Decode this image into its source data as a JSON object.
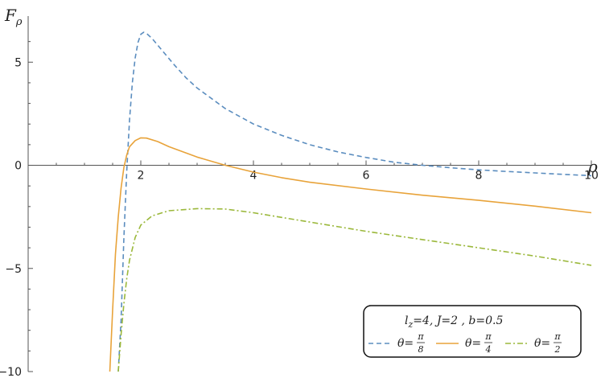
{
  "chart_data": {
    "type": "line",
    "xlabel": "ρ",
    "ylabel_main": "F",
    "ylabel_sub": "ρ",
    "xlim": [
      0,
      10
    ],
    "ylim": [
      -10,
      7
    ],
    "x_ticks": [
      2,
      4,
      6,
      8,
      10
    ],
    "x_tick_labels": [
      "2",
      "4",
      "6",
      "8",
      "10"
    ],
    "y_ticks": [
      5,
      0,
      -5,
      -10
    ],
    "y_tick_labels": [
      "5",
      "0",
      "−5",
      "−10"
    ],
    "grid": false,
    "legend_placement": "bottom-right",
    "params": {
      "lz": "l",
      "lz_sub": "z",
      "lz_rest": "=4,  J=2 ,  b=0.5"
    },
    "series": [
      {
        "name": "θ = π/8",
        "label_lhs": "θ",
        "label_num": "π",
        "label_den": "8",
        "color": "#5B8DBF",
        "dash": "6,4",
        "points": [
          [
            1.6,
            -10
          ],
          [
            1.65,
            -7.5
          ],
          [
            1.7,
            -3.5
          ],
          [
            1.75,
            -0.3
          ],
          [
            1.8,
            2.2
          ],
          [
            1.85,
            4.0
          ],
          [
            1.9,
            5.2
          ],
          [
            1.95,
            5.95
          ],
          [
            2.0,
            6.35
          ],
          [
            2.05,
            6.45
          ],
          [
            2.1,
            6.4
          ],
          [
            2.2,
            6.15
          ],
          [
            2.4,
            5.5
          ],
          [
            2.6,
            4.85
          ],
          [
            2.8,
            4.25
          ],
          [
            3.0,
            3.75
          ],
          [
            3.5,
            2.75
          ],
          [
            4.0,
            2.0
          ],
          [
            4.5,
            1.45
          ],
          [
            5.0,
            1.0
          ],
          [
            5.5,
            0.65
          ],
          [
            6.0,
            0.38
          ],
          [
            6.5,
            0.15
          ],
          [
            7.0,
            0.0
          ],
          [
            7.5,
            -0.12
          ],
          [
            8.0,
            -0.22
          ],
          [
            8.5,
            -0.3
          ],
          [
            9.0,
            -0.37
          ],
          [
            9.5,
            -0.44
          ],
          [
            10.0,
            -0.5
          ]
        ]
      },
      {
        "name": "θ = π/4",
        "label_lhs": "θ",
        "label_num": "π",
        "label_den": "4",
        "color": "#E8A33A",
        "dash": "",
        "points": [
          [
            1.45,
            -10
          ],
          [
            1.5,
            -7.0
          ],
          [
            1.55,
            -4.3
          ],
          [
            1.6,
            -2.5
          ],
          [
            1.65,
            -1.1
          ],
          [
            1.7,
            -0.1
          ],
          [
            1.75,
            0.5
          ],
          [
            1.8,
            0.9
          ],
          [
            1.9,
            1.2
          ],
          [
            2.0,
            1.33
          ],
          [
            2.1,
            1.32
          ],
          [
            2.3,
            1.15
          ],
          [
            2.5,
            0.9
          ],
          [
            3.0,
            0.4
          ],
          [
            3.5,
            0.0
          ],
          [
            4.0,
            -0.33
          ],
          [
            4.5,
            -0.6
          ],
          [
            5.0,
            -0.82
          ],
          [
            6.0,
            -1.15
          ],
          [
            7.0,
            -1.45
          ],
          [
            8.0,
            -1.7
          ],
          [
            9.0,
            -1.98
          ],
          [
            10.0,
            -2.3
          ]
        ]
      },
      {
        "name": "θ = π/2",
        "label_lhs": "θ",
        "label_num": "π",
        "label_den": "2",
        "color": "#9BB83B",
        "dash": "7,3,2,3",
        "points": [
          [
            1.6,
            -10
          ],
          [
            1.65,
            -8.2
          ],
          [
            1.7,
            -6.7
          ],
          [
            1.75,
            -5.5
          ],
          [
            1.8,
            -4.6
          ],
          [
            1.9,
            -3.5
          ],
          [
            2.0,
            -2.9
          ],
          [
            2.2,
            -2.45
          ],
          [
            2.5,
            -2.2
          ],
          [
            3.0,
            -2.1
          ],
          [
            3.5,
            -2.12
          ],
          [
            4.0,
            -2.3
          ],
          [
            5.0,
            -2.75
          ],
          [
            6.0,
            -3.2
          ],
          [
            7.0,
            -3.6
          ],
          [
            8.0,
            -4.0
          ],
          [
            9.0,
            -4.4
          ],
          [
            10.0,
            -4.85
          ]
        ]
      }
    ]
  }
}
